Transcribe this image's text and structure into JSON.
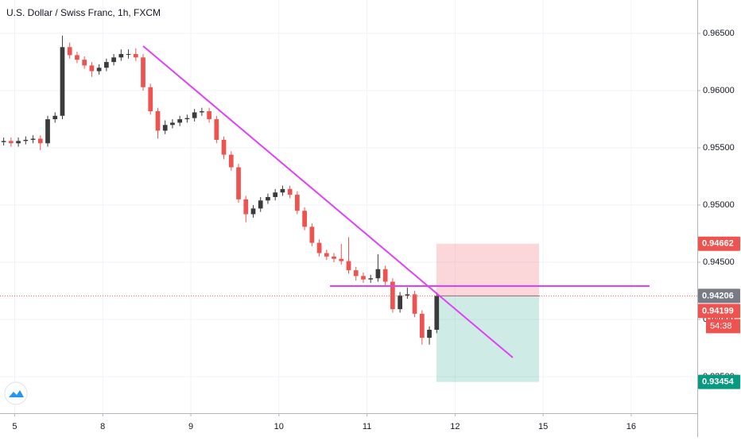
{
  "chart_data": {
    "type": "candlestick",
    "title": "U.S. Dollar / Swiss Franc, 1h, FXCM",
    "x": [
      1,
      3,
      5,
      7,
      9,
      11,
      13,
      15,
      17,
      19,
      21,
      23,
      25,
      27,
      29,
      31,
      33,
      35,
      37,
      39,
      41,
      43,
      45,
      47,
      49,
      51,
      53,
      55,
      57,
      59,
      61,
      63,
      65,
      67,
      69,
      71,
      73,
      75,
      77,
      79,
      81,
      83,
      85,
      87,
      89,
      91,
      93,
      95,
      97,
      99,
      101,
      103,
      105,
      107,
      109,
      111,
      113,
      115,
      117,
      119
    ],
    "open": [
      0.9555,
      0.9556,
      0.9554,
      0.9556,
      0.9557,
      0.9558,
      0.9554,
      0.9575,
      0.9578,
      0.9638,
      0.9631,
      0.9627,
      0.9622,
      0.9617,
      0.962,
      0.9625,
      0.9629,
      0.9632,
      0.9632,
      0.9629,
      0.9603,
      0.9582,
      0.9565,
      0.957,
      0.9572,
      0.9575,
      0.9576,
      0.9581,
      0.9582,
      0.9575,
      0.9557,
      0.9544,
      0.9533,
      0.9505,
      0.9492,
      0.9497,
      0.9504,
      0.9507,
      0.9511,
      0.9514,
      0.9509,
      0.9495,
      0.9481,
      0.9467,
      0.9458,
      0.9455,
      0.9453,
      0.9451,
      0.9443,
      0.9438,
      0.9435,
      0.9436,
      0.9444,
      0.9433,
      0.9409,
      0.9421,
      0.9422,
      0.9405,
      0.9384,
      0.9391
    ],
    "high": [
      0.9559,
      0.9559,
      0.9559,
      0.956,
      0.9561,
      0.9561,
      0.9578,
      0.9581,
      0.9648,
      0.9642,
      0.9634,
      0.963,
      0.9625,
      0.9623,
      0.9628,
      0.9632,
      0.9636,
      0.9636,
      0.9637,
      0.9632,
      0.9606,
      0.9585,
      0.9574,
      0.9575,
      0.9578,
      0.9579,
      0.9584,
      0.9585,
      0.9585,
      0.9578,
      0.956,
      0.9547,
      0.9536,
      0.9508,
      0.95,
      0.9507,
      0.951,
      0.9514,
      0.9517,
      0.9517,
      0.9512,
      0.9498,
      0.9484,
      0.947,
      0.9461,
      0.9458,
      0.9466,
      0.9472,
      0.9446,
      0.9441,
      0.9439,
      0.9457,
      0.9447,
      0.9436,
      0.9424,
      0.9428,
      0.9425,
      0.9408,
      0.9394,
      0.94236
    ],
    "low": [
      0.9552,
      0.9551,
      0.9551,
      0.9553,
      0.9554,
      0.9548,
      0.9551,
      0.9572,
      0.9575,
      0.9628,
      0.9624,
      0.9619,
      0.9612,
      0.9614,
      0.9617,
      0.9622,
      0.9626,
      0.9628,
      0.9626,
      0.96,
      0.9579,
      0.9558,
      0.9562,
      0.9567,
      0.9569,
      0.9572,
      0.9573,
      0.9578,
      0.9572,
      0.9554,
      0.954,
      0.953,
      0.9502,
      0.9485,
      0.9489,
      0.9494,
      0.9501,
      0.9504,
      0.9508,
      0.9506,
      0.9492,
      0.9478,
      0.9464,
      0.9455,
      0.9452,
      0.945,
      0.9448,
      0.944,
      0.9434,
      0.9432,
      0.9432,
      0.9433,
      0.943,
      0.9406,
      0.9406,
      0.9418,
      0.9402,
      0.9378,
      0.9378,
      0.9388
    ],
    "close": [
      0.9556,
      0.9554,
      0.9556,
      0.9557,
      0.9558,
      0.9554,
      0.9575,
      0.9578,
      0.9638,
      0.9631,
      0.9627,
      0.9622,
      0.9617,
      0.962,
      0.9625,
      0.9629,
      0.9632,
      0.9632,
      0.9629,
      0.9603,
      0.9582,
      0.9565,
      0.957,
      0.9572,
      0.9575,
      0.9576,
      0.9581,
      0.9582,
      0.9575,
      0.9557,
      0.9544,
      0.9533,
      0.9505,
      0.9492,
      0.9497,
      0.9504,
      0.9507,
      0.9511,
      0.9514,
      0.9509,
      0.9495,
      0.9481,
      0.9467,
      0.9458,
      0.9455,
      0.9453,
      0.9451,
      0.9443,
      0.9438,
      0.9435,
      0.9436,
      0.9444,
      0.9433,
      0.9409,
      0.9421,
      0.9422,
      0.9405,
      0.9384,
      0.9391,
      0.94206
    ],
    "up_color": "#3b3b3b",
    "down_color": "#ef5350",
    "xlim": [
      0,
      190
    ],
    "xticks": [
      {
        "value": 4,
        "label": "5"
      },
      {
        "value": 28,
        "label": "8"
      },
      {
        "value": 52,
        "label": "9"
      },
      {
        "value": 76,
        "label": "10"
      },
      {
        "value": 100,
        "label": "11"
      },
      {
        "value": 124,
        "label": "12"
      },
      {
        "value": 148,
        "label": "15"
      },
      {
        "value": 172,
        "label": "16"
      }
    ],
    "ylim": [
      0.93181,
      0.96792
    ],
    "yticks": [
      {
        "value": 0.935,
        "label": "0.93500"
      },
      {
        "value": 0.94,
        "label": "0.94000"
      },
      {
        "value": 0.945,
        "label": "0.94500"
      },
      {
        "value": 0.95,
        "label": "0.95000"
      },
      {
        "value": 0.955,
        "label": "0.95500"
      },
      {
        "value": 0.96,
        "label": "0.96000"
      },
      {
        "value": 0.965,
        "label": "0.96500"
      }
    ],
    "grid": true,
    "price_tags": [
      {
        "value": 0.94662,
        "color": "#ef5350"
      },
      {
        "value": 0.94206,
        "color": "#787b86"
      },
      {
        "value": 0.94199,
        "color": "#ef5350"
      },
      {
        "value": 0.93454,
        "color": "#089981"
      }
    ],
    "countdown": "54:38"
  }
}
